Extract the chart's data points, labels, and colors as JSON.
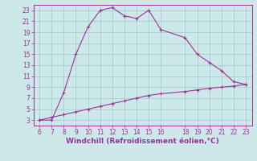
{
  "xlabel": "Windchill (Refroidissement éolien,°C)",
  "background_color": "#cce8e8",
  "line_color": "#993399",
  "grid_color": "#aacccc",
  "line1_x": [
    6,
    7,
    8,
    9,
    10,
    11,
    12,
    13,
    14,
    15,
    16,
    18,
    19,
    20,
    21,
    22,
    23
  ],
  "line1_y": [
    3,
    3,
    8,
    15,
    20,
    23,
    23.5,
    22,
    21.5,
    23,
    19.5,
    18,
    15,
    13.5,
    12,
    10,
    9.5
  ],
  "line2_x": [
    6,
    7,
    8,
    9,
    10,
    11,
    12,
    13,
    14,
    15,
    16,
    18,
    19,
    20,
    21,
    22,
    23
  ],
  "line2_y": [
    3,
    3.5,
    4,
    4.5,
    5,
    5.5,
    6,
    6.5,
    7,
    7.5,
    7.8,
    8.2,
    8.5,
    8.8,
    9,
    9.2,
    9.5
  ],
  "xlim": [
    5.5,
    23.5
  ],
  "ylim": [
    2,
    24
  ],
  "xticks": [
    6,
    7,
    8,
    9,
    10,
    11,
    12,
    13,
    14,
    15,
    16,
    18,
    19,
    20,
    21,
    22,
    23
  ],
  "yticks": [
    3,
    5,
    7,
    9,
    11,
    13,
    15,
    17,
    19,
    21,
    23
  ],
  "tick_fontsize": 5.5,
  "xlabel_fontsize": 6.5
}
